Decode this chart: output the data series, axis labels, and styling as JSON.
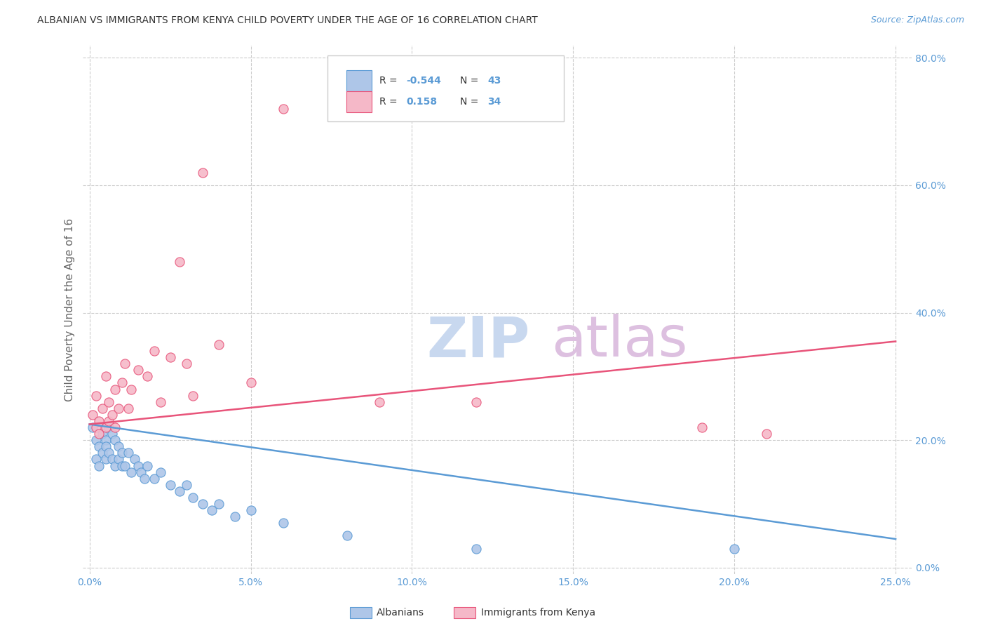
{
  "title": "ALBANIAN VS IMMIGRANTS FROM KENYA CHILD POVERTY UNDER THE AGE OF 16 CORRELATION CHART",
  "source": "Source: ZipAtlas.com",
  "ylabel": "Child Poverty Under the Age of 16",
  "xlabel_ticks": [
    "0.0%",
    "5.0%",
    "10.0%",
    "15.0%",
    "20.0%",
    "25.0%"
  ],
  "xlabel_vals": [
    0,
    0.05,
    0.1,
    0.15,
    0.2,
    0.25
  ],
  "ylabel_ticks": [
    "0.0%",
    "20.0%",
    "40.0%",
    "60.0%",
    "80.0%"
  ],
  "ylabel_vals": [
    0.0,
    0.2,
    0.4,
    0.6,
    0.8
  ],
  "xlim": [
    -0.002,
    0.255
  ],
  "ylim": [
    -0.01,
    0.82
  ],
  "albanian_R": -0.544,
  "albanian_N": 43,
  "kenya_R": 0.158,
  "kenya_N": 34,
  "albanian_color": "#aec6e8",
  "kenya_color": "#f5b8c8",
  "albanian_edge_color": "#5b9bd5",
  "kenya_edge_color": "#e8547a",
  "albanian_line_color": "#5b9bd5",
  "kenya_line_color": "#e8547a",
  "background_color": "#ffffff",
  "grid_color": "#cccccc",
  "watermark_zip_color": "#c5d8f0",
  "watermark_atlas_color": "#ddc8e0",
  "title_color": "#333333",
  "axis_tick_color": "#5b9bd5",
  "ylabel_color": "#666666",
  "legend_R_color": "#333333",
  "legend_val_color": "#5b9bd5",
  "legend_N_color": "#333333",
  "legend_Nval_color": "#5b9bd5",
  "source_color": "#5b9bd5",
  "alb_x": [
    0.001,
    0.002,
    0.002,
    0.003,
    0.003,
    0.004,
    0.004,
    0.005,
    0.005,
    0.005,
    0.006,
    0.006,
    0.007,
    0.007,
    0.008,
    0.008,
    0.009,
    0.009,
    0.01,
    0.01,
    0.011,
    0.012,
    0.013,
    0.014,
    0.015,
    0.016,
    0.017,
    0.018,
    0.02,
    0.022,
    0.025,
    0.028,
    0.03,
    0.032,
    0.035,
    0.038,
    0.04,
    0.045,
    0.05,
    0.06,
    0.08,
    0.12,
    0.2
  ],
  "alb_y": [
    0.22,
    0.2,
    0.17,
    0.19,
    0.16,
    0.21,
    0.18,
    0.2,
    0.19,
    0.17,
    0.22,
    0.18,
    0.21,
    0.17,
    0.2,
    0.16,
    0.19,
    0.17,
    0.18,
    0.16,
    0.16,
    0.18,
    0.15,
    0.17,
    0.16,
    0.15,
    0.14,
    0.16,
    0.14,
    0.15,
    0.13,
    0.12,
    0.13,
    0.11,
    0.1,
    0.09,
    0.1,
    0.08,
    0.09,
    0.07,
    0.05,
    0.03,
    0.03
  ],
  "ken_x": [
    0.001,
    0.002,
    0.002,
    0.003,
    0.003,
    0.004,
    0.005,
    0.005,
    0.006,
    0.006,
    0.007,
    0.008,
    0.008,
    0.009,
    0.01,
    0.011,
    0.012,
    0.013,
    0.015,
    0.018,
    0.02,
    0.022,
    0.025,
    0.028,
    0.03,
    0.032,
    0.035,
    0.04,
    0.05,
    0.06,
    0.09,
    0.12,
    0.19,
    0.21
  ],
  "ken_y": [
    0.24,
    0.22,
    0.27,
    0.21,
    0.23,
    0.25,
    0.22,
    0.3,
    0.26,
    0.23,
    0.24,
    0.28,
    0.22,
    0.25,
    0.29,
    0.32,
    0.25,
    0.28,
    0.31,
    0.3,
    0.34,
    0.26,
    0.33,
    0.48,
    0.32,
    0.27,
    0.62,
    0.35,
    0.29,
    0.72,
    0.26,
    0.26,
    0.22,
    0.21
  ],
  "alb_line_x": [
    0.0,
    0.25
  ],
  "alb_line_y": [
    0.225,
    0.045
  ],
  "ken_line_x": [
    0.0,
    0.25
  ],
  "ken_line_y": [
    0.225,
    0.355
  ]
}
